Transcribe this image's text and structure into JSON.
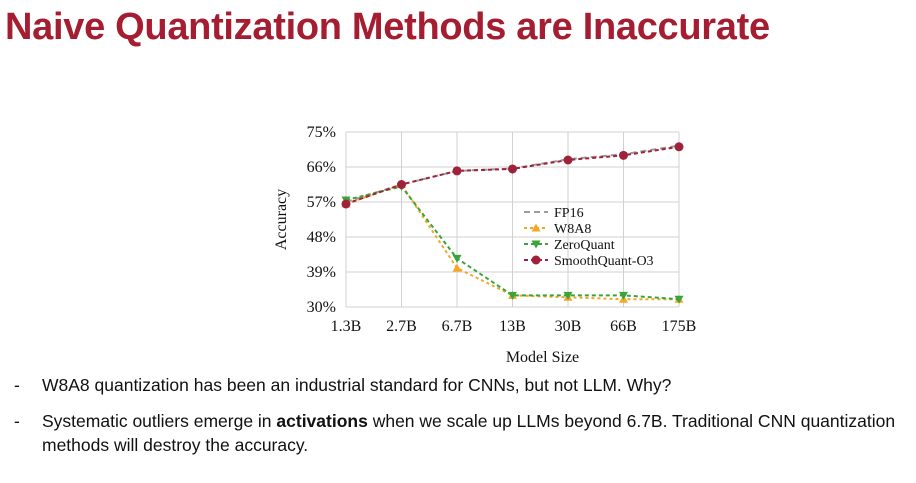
{
  "slide": {
    "title": "Naive Quantization Methods are Inaccurate",
    "title_color": "#a51d30"
  },
  "chart_data": {
    "type": "line",
    "categories": [
      "1.3B",
      "2.7B",
      "6.7B",
      "13B",
      "30B",
      "66B",
      "175B"
    ],
    "xlabel": "Model Size",
    "ylabel": "Accuracy",
    "ylim": [
      30,
      75
    ],
    "yticks": [
      "30%",
      "39%",
      "48%",
      "57%",
      "66%",
      "75%"
    ],
    "ytick_values": [
      30,
      39,
      48,
      57,
      66,
      75
    ],
    "grid": true,
    "legend_position": "right-middle",
    "series": [
      {
        "name": "FP16",
        "values": [
          57.0,
          61.5,
          65.0,
          65.6,
          68.0,
          69.3,
          71.5
        ],
        "color": "#9a9a9a",
        "marker": "none",
        "dash": "6,4"
      },
      {
        "name": "W8A8",
        "values": [
          56.5,
          61.5,
          40.0,
          33.0,
          32.5,
          32.0,
          32.0
        ],
        "color": "#f5a623",
        "marker": "triangle-up",
        "dash": "3,3"
      },
      {
        "name": "ZeroQuant",
        "values": [
          57.5,
          61.0,
          42.5,
          33.0,
          33.0,
          33.0,
          32.0
        ],
        "color": "#3aa43a",
        "marker": "triangle-down",
        "dash": "4,3"
      },
      {
        "name": "SmoothQuant-O3",
        "values": [
          56.5,
          61.5,
          65.0,
          65.5,
          67.8,
          69.0,
          71.2
        ],
        "color": "#a0213a",
        "marker": "circle",
        "dash": "4,3"
      }
    ]
  },
  "bullets": [
    {
      "dash": "-",
      "parts": [
        {
          "text": "W8A8 quantization has been an industrial standard for CNNs, but not LLM. Why?",
          "bold": false
        }
      ]
    },
    {
      "dash": "-",
      "parts": [
        {
          "text": "Systematic outliers emerge in ",
          "bold": false
        },
        {
          "text": "activations",
          "bold": true
        },
        {
          "text": " when we scale up LLMs beyond 6.7B. Traditional CNN quantization methods will destroy the accuracy.",
          "bold": false
        }
      ]
    }
  ]
}
